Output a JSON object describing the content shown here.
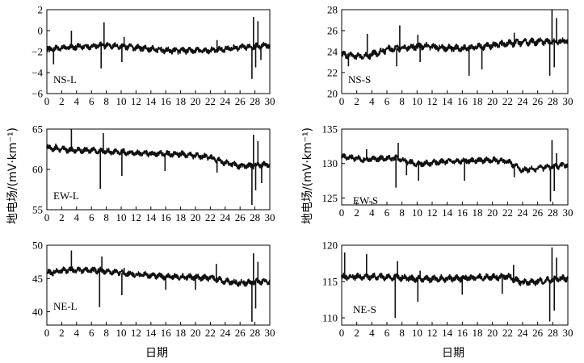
{
  "figure": {
    "ylabel": "地电场/(mV·km⁻¹)",
    "xlabel": "日期"
  },
  "chart_data": [
    {
      "type": "line",
      "panel": "NS-L",
      "label": "NS-L",
      "xlim": [
        0,
        30
      ],
      "ylim": [
        -6,
        2
      ],
      "xticks": [
        0,
        2,
        4,
        6,
        8,
        10,
        12,
        14,
        16,
        18,
        20,
        22,
        24,
        26,
        28,
        30
      ],
      "yticks": [
        -6,
        -4,
        -2,
        0,
        2
      ],
      "baseline": [
        [
          0,
          -1.8
        ],
        [
          3,
          -1.6
        ],
        [
          8,
          -1.4
        ],
        [
          12,
          -1.6
        ],
        [
          16,
          -1.9
        ],
        [
          22,
          -1.9
        ],
        [
          26,
          -1.6
        ],
        [
          30,
          -1.4
        ]
      ],
      "noise": 0.22,
      "spikes": [
        [
          0.9,
          -3.2
        ],
        [
          3.3,
          0.0
        ],
        [
          7.3,
          -3.6
        ],
        [
          7.7,
          0.8
        ],
        [
          10.1,
          -3.0
        ],
        [
          10.4,
          -0.6
        ],
        [
          22.9,
          -0.9
        ],
        [
          27.6,
          -4.6
        ],
        [
          27.8,
          1.3
        ],
        [
          28.1,
          -3.5
        ],
        [
          28.4,
          0.9
        ],
        [
          28.8,
          -2.8
        ]
      ]
    },
    {
      "type": "line",
      "panel": "NS-S",
      "label": "NS-S",
      "xlim": [
        0,
        30
      ],
      "ylim": [
        20,
        28
      ],
      "xticks": [
        0,
        2,
        4,
        6,
        8,
        10,
        12,
        14,
        16,
        18,
        20,
        22,
        24,
        26,
        28,
        30
      ],
      "yticks": [
        20,
        22,
        24,
        26,
        28
      ],
      "baseline": [
        [
          0,
          23.7
        ],
        [
          3,
          23.5
        ],
        [
          6,
          24.2
        ],
        [
          10,
          24.5
        ],
        [
          16,
          24.3
        ],
        [
          20,
          24.6
        ],
        [
          24,
          24.9
        ],
        [
          30,
          25.0
        ]
      ],
      "noise": 0.25,
      "spikes": [
        [
          0.9,
          22.6
        ],
        [
          3.4,
          25.7
        ],
        [
          7.3,
          22.6
        ],
        [
          7.7,
          26.5
        ],
        [
          10.1,
          25.6
        ],
        [
          10.4,
          23.0
        ],
        [
          16.9,
          21.7
        ],
        [
          18.6,
          22.3
        ],
        [
          22.9,
          25.8
        ],
        [
          27.6,
          21.7
        ],
        [
          27.9,
          28.0
        ],
        [
          28.2,
          22.5
        ],
        [
          28.5,
          27.2
        ]
      ]
    },
    {
      "type": "line",
      "panel": "EW-L",
      "label": "EW-L",
      "xlim": [
        0,
        30
      ],
      "ylim": [
        55,
        65
      ],
      "xticks": [
        0,
        2,
        4,
        6,
        8,
        10,
        12,
        14,
        16,
        18,
        20,
        22,
        24,
        26,
        28,
        30
      ],
      "yticks": [
        55,
        60,
        65
      ],
      "baseline": [
        [
          0,
          62.7
        ],
        [
          3,
          62.4
        ],
        [
          7,
          62.3
        ],
        [
          12,
          62.0
        ],
        [
          18,
          61.9
        ],
        [
          22,
          61.5
        ],
        [
          24,
          60.8
        ],
        [
          26,
          60.4
        ],
        [
          30,
          60.6
        ]
      ],
      "noise": 0.28,
      "spikes": [
        [
          1.2,
          63.2
        ],
        [
          3.3,
          65.1
        ],
        [
          7.2,
          57.6
        ],
        [
          7.6,
          64.5
        ],
        [
          10.1,
          59.2
        ],
        [
          10.4,
          62.6
        ],
        [
          15.9,
          59.8
        ],
        [
          22.9,
          59.6
        ],
        [
          27.6,
          55.6
        ],
        [
          27.8,
          64.3
        ],
        [
          28.1,
          57.4
        ],
        [
          28.4,
          63.5
        ],
        [
          28.9,
          58.3
        ]
      ]
    },
    {
      "type": "line",
      "panel": "EW-S",
      "label": "EW-S",
      "xlim": [
        0,
        30
      ],
      "ylim": [
        124,
        135
      ],
      "xticks": [
        0,
        2,
        4,
        6,
        8,
        10,
        12,
        14,
        16,
        18,
        20,
        22,
        24,
        26,
        28,
        30
      ],
      "yticks": [
        125,
        130,
        135
      ],
      "baseline": [
        [
          0,
          131.0
        ],
        [
          3,
          130.6
        ],
        [
          7,
          130.8
        ],
        [
          10,
          129.9
        ],
        [
          14,
          130.3
        ],
        [
          20,
          130.5
        ],
        [
          22,
          130.3
        ],
        [
          24,
          129.0
        ],
        [
          26,
          129.3
        ],
        [
          30,
          129.8
        ]
      ],
      "noise": 0.32,
      "spikes": [
        [
          3.3,
          132.1
        ],
        [
          7.2,
          126.5
        ],
        [
          7.5,
          133.0
        ],
        [
          8.6,
          128.3
        ],
        [
          10.2,
          127.5
        ],
        [
          16.3,
          127.5
        ],
        [
          22.9,
          128.0
        ],
        [
          27.7,
          124.5
        ],
        [
          27.9,
          133.4
        ],
        [
          28.2,
          126.0
        ],
        [
          28.5,
          131.5
        ]
      ]
    },
    {
      "type": "line",
      "panel": "NE-L",
      "label": "NE-L",
      "xlim": [
        0,
        30
      ],
      "ylim": [
        38,
        50
      ],
      "xticks": [
        0,
        2,
        4,
        6,
        8,
        10,
        12,
        14,
        16,
        18,
        20,
        22,
        24,
        26,
        28,
        30
      ],
      "yticks": [
        40,
        45,
        50
      ],
      "baseline": [
        [
          0,
          45.8
        ],
        [
          3,
          46.3
        ],
        [
          7,
          46.2
        ],
        [
          12,
          45.6
        ],
        [
          16,
          45.3
        ],
        [
          22,
          45.1
        ],
        [
          24,
          44.6
        ],
        [
          26,
          44.3
        ],
        [
          30,
          44.6
        ]
      ],
      "noise": 0.35,
      "spikes": [
        [
          0.7,
          45.5
        ],
        [
          3.3,
          49.2
        ],
        [
          7.1,
          40.7
        ],
        [
          7.4,
          48.3
        ],
        [
          10.1,
          42.5
        ],
        [
          10.4,
          46.6
        ],
        [
          16.0,
          43.3
        ],
        [
          20.0,
          43.3
        ],
        [
          22.8,
          47.2
        ],
        [
          27.6,
          38.5
        ],
        [
          27.8,
          48.8
        ],
        [
          28.1,
          40.5
        ],
        [
          28.4,
          47.5
        ]
      ]
    },
    {
      "type": "line",
      "panel": "NE-S",
      "label": "NE-S",
      "xlim": [
        0,
        30
      ],
      "ylim": [
        109,
        120
      ],
      "xticks": [
        0,
        2,
        4,
        6,
        8,
        10,
        12,
        14,
        16,
        18,
        20,
        22,
        24,
        26,
        28,
        30
      ],
      "yticks": [
        110,
        115,
        120
      ],
      "baseline": [
        [
          0,
          115.6
        ],
        [
          3,
          115.7
        ],
        [
          7,
          115.6
        ],
        [
          10,
          115.3
        ],
        [
          14,
          115.4
        ],
        [
          20,
          115.6
        ],
        [
          22,
          115.7
        ],
        [
          24,
          114.8
        ],
        [
          26,
          115.0
        ],
        [
          30,
          115.5
        ]
      ],
      "noise": 0.35,
      "spikes": [
        [
          0.4,
          119.0
        ],
        [
          3.3,
          118.8
        ],
        [
          7.1,
          110.0
        ],
        [
          7.4,
          117.8
        ],
        [
          10.1,
          112.2
        ],
        [
          10.4,
          116.5
        ],
        [
          16.0,
          113.2
        ],
        [
          21.3,
          113.3
        ],
        [
          22.8,
          117.3
        ],
        [
          27.6,
          109.5
        ],
        [
          27.9,
          119.7
        ],
        [
          28.2,
          111.0
        ],
        [
          28.5,
          118.3
        ]
      ]
    }
  ]
}
